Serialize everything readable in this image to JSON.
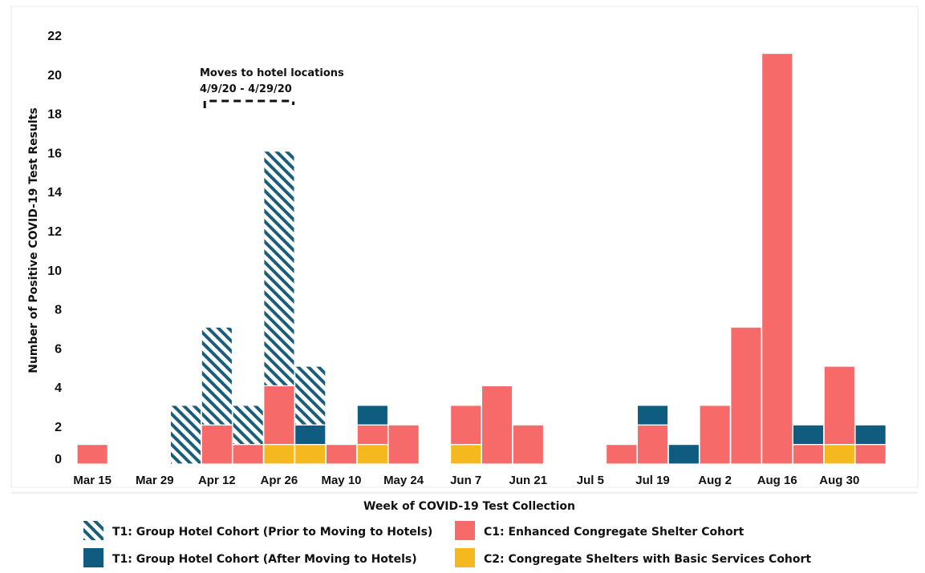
{
  "chart_data": {
    "type": "bar",
    "stacked": true,
    "xlabel": "Week of COVID-19 Test Collection",
    "ylabel": "Number of Positive COVID-19 Test Results",
    "ylim": [
      0,
      22
    ],
    "yticks": [
      0,
      2,
      4,
      6,
      8,
      10,
      12,
      14,
      16,
      18,
      20,
      22
    ],
    "categories": [
      "Mar 15",
      "Mar 22",
      "Mar 29",
      "Apr 5",
      "Apr 12",
      "Apr 19",
      "Apr 26",
      "May 3",
      "May 10",
      "May 17",
      "May 24",
      "May 31",
      "Jun 7",
      "Jun 14",
      "Jun 21",
      "Jun 28",
      "Jul 5",
      "Jul 12",
      "Jul 19",
      "Jul 26",
      "Aug 2",
      "Aug 9",
      "Aug 16",
      "Aug 23",
      "Aug 30",
      "Sep 6"
    ],
    "tick_labels": [
      "Mar 15",
      "Mar 29",
      "Apr 12",
      "Apr 26",
      "May 10",
      "May 24",
      "Jun 7",
      "Jun 21",
      "Jul 5",
      "Jul 19",
      "Aug 2",
      "Aug 16",
      "Aug 30"
    ],
    "grid": false,
    "legend_position": "bottom",
    "series": [
      {
        "name": "C2: Congregate Shelters with Basic Services Cohort",
        "color": "#f5b81f",
        "pattern": "solid",
        "values": [
          0,
          0,
          0,
          0,
          0,
          0,
          1,
          1,
          0,
          1,
          0,
          0,
          1,
          0,
          0,
          0,
          0,
          0,
          0,
          0,
          0,
          0,
          0,
          0,
          1,
          0
        ]
      },
      {
        "name": "C1: Enhanced Congregate Shelter Cohort",
        "color": "#f76a6a",
        "pattern": "solid",
        "values": [
          1,
          0,
          0,
          0,
          2,
          1,
          3,
          0,
          1,
          1,
          2,
          0,
          2,
          4,
          2,
          0,
          0,
          1,
          2,
          0,
          3,
          7,
          21,
          1,
          4,
          1
        ]
      },
      {
        "name": "T1: Group Hotel Cohort (After Moving to Hotels)",
        "color": "#0f5c80",
        "pattern": "solid",
        "values": [
          0,
          0,
          0,
          0,
          0,
          0,
          0,
          1,
          0,
          1,
          0,
          0,
          0,
          0,
          0,
          0,
          0,
          0,
          1,
          1,
          0,
          0,
          0,
          1,
          0,
          1
        ]
      },
      {
        "name": "T1: Group Hotel Cohort (Prior to Moving to Hotels)",
        "color": "#1a5e7a",
        "pattern": "hatch",
        "values": [
          0,
          0,
          0,
          3,
          5,
          2,
          12,
          3,
          0,
          0,
          0,
          0,
          0,
          0,
          0,
          0,
          0,
          0,
          0,
          0,
          0,
          0,
          0,
          0,
          0,
          0
        ]
      }
    ],
    "legend_order": [
      3,
      1,
      2,
      0
    ],
    "annotation": {
      "lines": [
        "Moves to hotel locations",
        "4/9/20 - 4/29/20"
      ],
      "bracket_start": 4,
      "bracket_end": 7
    }
  }
}
